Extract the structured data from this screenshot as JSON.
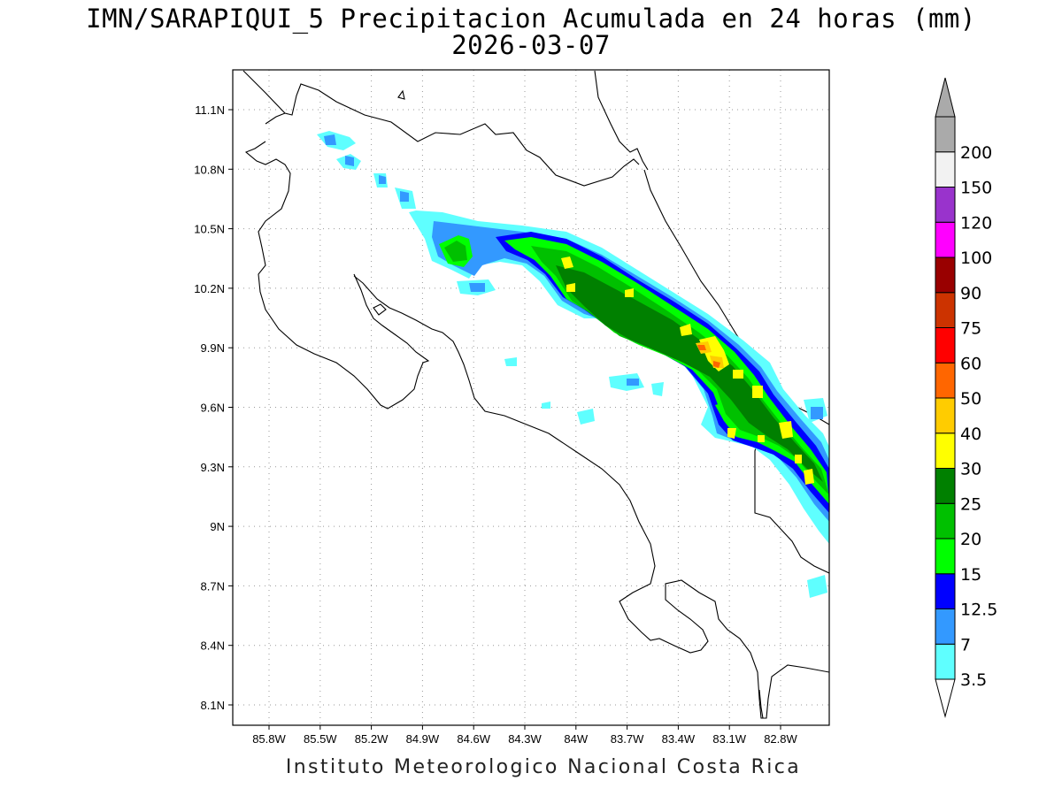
{
  "title": {
    "line1": "IMN/SARAPIQUI_5 Precipitacion Acumulada en 24 horas (mm)",
    "line2": "2026-03-07"
  },
  "footer": "Instituto Meteorologico Nacional Costa Rica",
  "map": {
    "lon_ticks": [
      "85.8W",
      "85.5W",
      "85.2W",
      "84.9W",
      "84.6W",
      "84.3W",
      "84W",
      "83.7W",
      "83.4W",
      "83.1W",
      "82.8W"
    ],
    "lat_ticks": [
      "11.1N",
      "10.8N",
      "10.5N",
      "10.2N",
      "9.9N",
      "9.6N",
      "9.3N",
      "9N",
      "8.7N",
      "8.4N",
      "8.1N"
    ],
    "grid": true,
    "background": "#ffffff",
    "coastline_color": "#000000"
  },
  "colorbar": {
    "levels": [
      "3.5",
      "7",
      "12.5",
      "15",
      "20",
      "25",
      "30",
      "40",
      "50",
      "60",
      "75",
      "90",
      "100",
      "120",
      "150",
      "200"
    ],
    "colors": [
      "#5fffff",
      "#3399ff",
      "#0000ff",
      "#00ff00",
      "#00c000",
      "#008000",
      "#ffff00",
      "#ffcc00",
      "#ff6600",
      "#ff0000",
      "#cc3300",
      "#990000",
      "#ff00ff",
      "#9933cc",
      "#f2f2f2",
      "#aaaaaa"
    ]
  }
}
